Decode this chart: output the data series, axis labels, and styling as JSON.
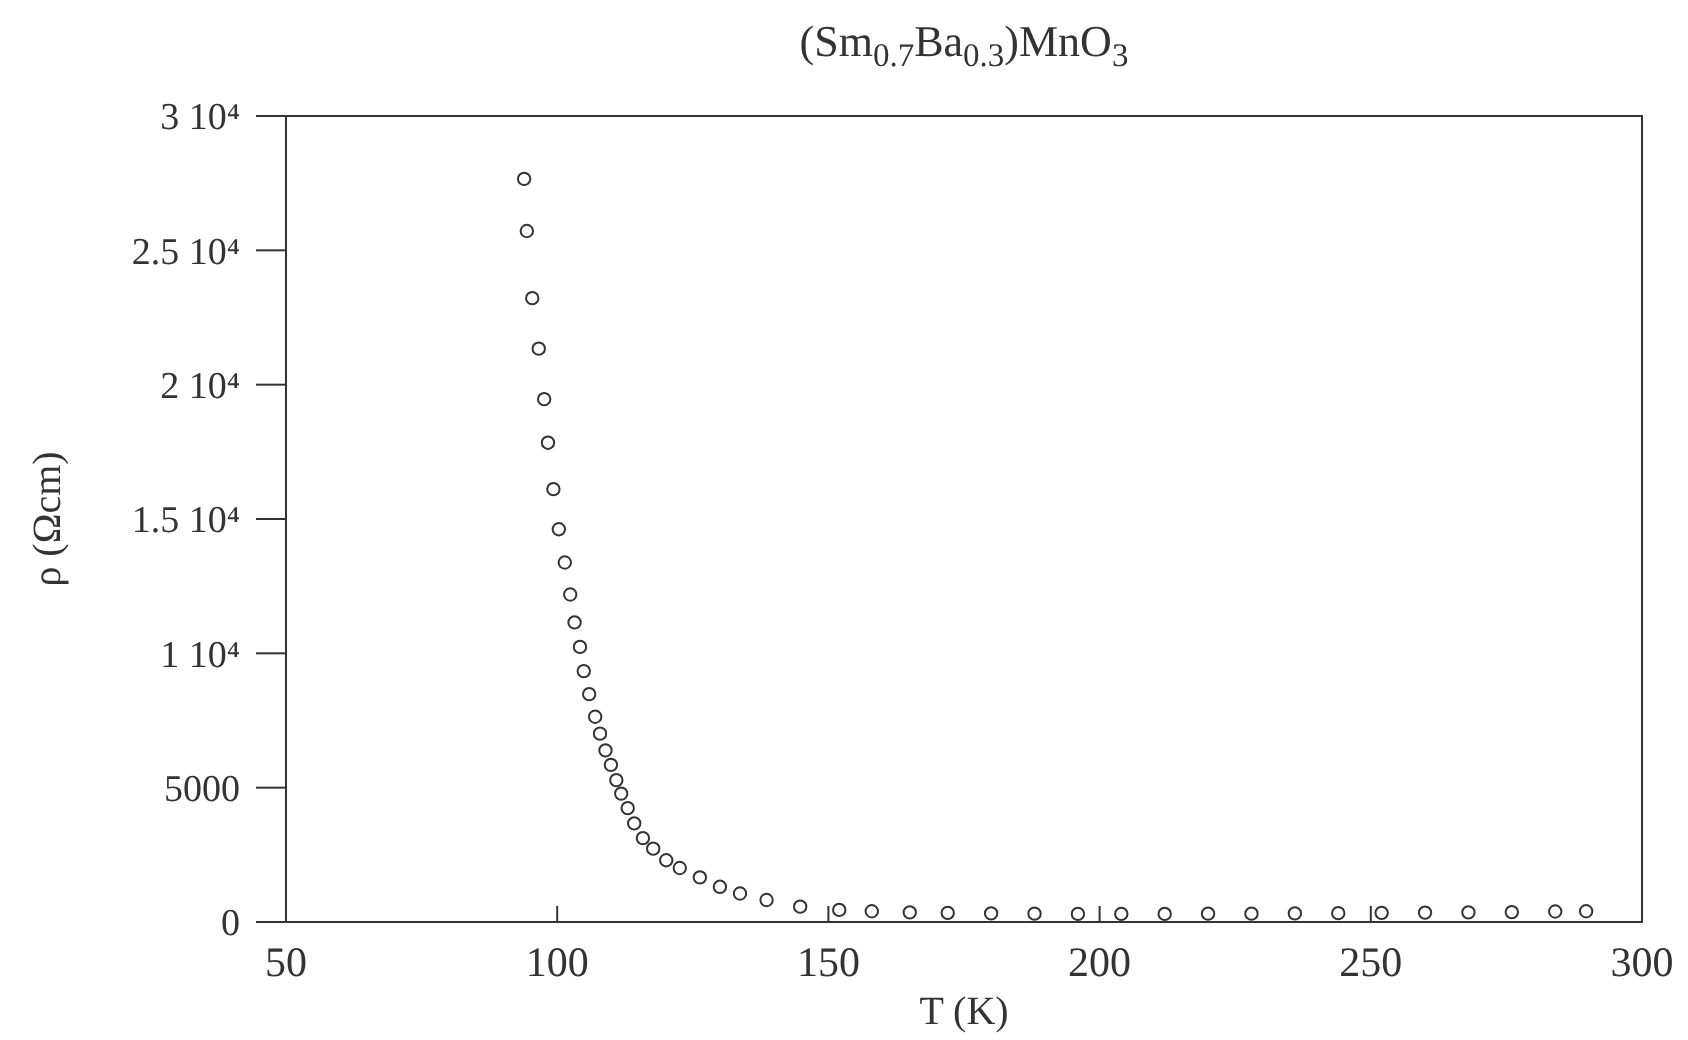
{
  "chart_data": {
    "type": "scatter",
    "title": "(Sm$_{0.7}$Ba$_{0.3}$)MnO$_{3}$",
    "xlabel": "T (K)",
    "ylabel": "ρ (Ωcm)",
    "xlim": [
      50,
      300
    ],
    "xticks": [
      50,
      100,
      150,
      200,
      250,
      300
    ],
    "ylim": [
      0,
      30000
    ],
    "yticks": [
      0,
      5000,
      {
        "value": 10000,
        "label": "1 10⁴"
      },
      {
        "value": 15000,
        "label": "1.5 10⁴"
      },
      {
        "value": 20000,
        "label": "2 10⁴"
      },
      {
        "value": 25000,
        "label": "2.5 10⁴"
      },
      {
        "value": 30000,
        "label": "3 10⁴"
      }
    ],
    "marker": "circle",
    "series": [
      {
        "color": "#333333",
        "x": [
          93.9,
          94.4,
          95.4,
          96.6,
          97.6,
          98.3,
          99.3,
          100.3,
          101.4,
          102.4,
          103.2,
          104.2,
          104.9,
          105.9,
          107.0,
          107.9,
          108.9,
          109.9,
          110.9,
          111.8,
          113.0,
          114.2,
          115.8,
          117.7,
          120.1,
          122.6,
          126.3,
          130,
          133.7,
          138.6,
          144.8,
          152,
          158,
          165,
          172,
          180,
          188,
          196,
          204,
          212,
          220,
          228,
          236,
          244,
          252,
          260,
          268,
          276,
          284,
          289.7
        ],
        "values": [
          27660,
          25720,
          23220,
          21340,
          19460,
          17840,
          16110,
          14620,
          13380,
          12190,
          11150,
          10240,
          9340,
          8480,
          7640,
          7010,
          6390,
          5850,
          5280,
          4780,
          4240,
          3670,
          3120,
          2730,
          2300,
          2010,
          1660,
          1310,
          1060,
          820,
          570,
          450,
          400,
          360,
          340,
          320,
          310,
          300,
          300,
          300,
          310,
          310,
          320,
          330,
          340,
          350,
          360,
          370,
          390,
          400
        ]
      }
    ]
  }
}
